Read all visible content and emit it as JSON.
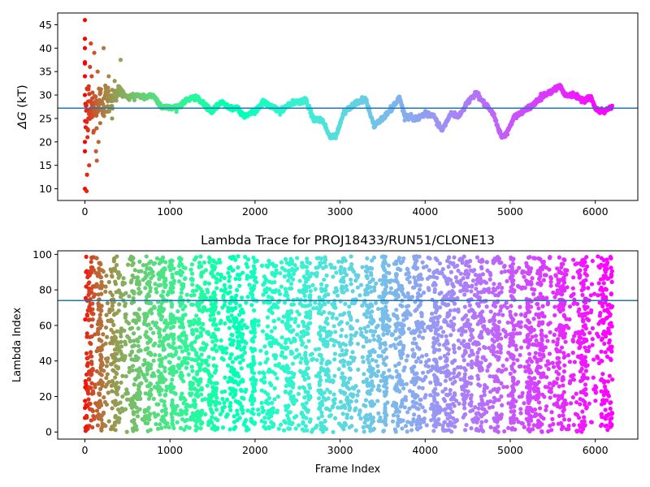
{
  "chart_data": [
    {
      "type": "scatter",
      "title": "",
      "xlabel": "",
      "ylabel": "ΔG (kT)",
      "ylabel_parts": {
        "symbol": "ΔG",
        "unit": " (kT)"
      },
      "xlim": [
        -320,
        6500
      ],
      "ylim": [
        7.5,
        47.5
      ],
      "xticks": [
        0,
        1000,
        2000,
        3000,
        4000,
        5000,
        6000
      ],
      "yticks": [
        10,
        15,
        20,
        25,
        30,
        35,
        40,
        45
      ],
      "hline": {
        "y": 27.2,
        "color": "#1f77b4"
      },
      "colormap": "rainbow (red at start → violet at end)",
      "series": [
        {
          "frame_range": [
            0,
            6200
          ],
          "trace_keypoints": [
            [
              0,
              27
            ],
            [
              100,
              27
            ],
            [
              200,
              28.5
            ],
            [
              300,
              29
            ],
            [
              400,
              31
            ],
            [
              500,
              29.5
            ],
            [
              600,
              30
            ],
            [
              700,
              29.5
            ],
            [
              800,
              30
            ],
            [
              900,
              27.5
            ],
            [
              1000,
              27.3
            ],
            [
              1100,
              27.5
            ],
            [
              1200,
              29
            ],
            [
              1300,
              29.5
            ],
            [
              1400,
              28
            ],
            [
              1500,
              26.5
            ],
            [
              1600,
              28.5
            ],
            [
              1700,
              27.5
            ],
            [
              1800,
              27
            ],
            [
              1870,
              25.5
            ],
            [
              2000,
              26.5
            ],
            [
              2100,
              28.5
            ],
            [
              2200,
              27.5
            ],
            [
              2300,
              26.5
            ],
            [
              2400,
              28
            ],
            [
              2600,
              29
            ],
            [
              2680,
              25
            ],
            [
              2800,
              24.5
            ],
            [
              2880,
              21
            ],
            [
              2950,
              21.2
            ],
            [
              3050,
              26.5
            ],
            [
              3200,
              28.5
            ],
            [
              3300,
              29
            ],
            [
              3400,
              23.5
            ],
            [
              3500,
              25
            ],
            [
              3600,
              27
            ],
            [
              3700,
              29.5
            ],
            [
              3760,
              25.5
            ],
            [
              3900,
              25
            ],
            [
              4000,
              26
            ],
            [
              4100,
              25.5
            ],
            [
              4200,
              22.5
            ],
            [
              4300,
              26
            ],
            [
              4400,
              25.5
            ],
            [
              4500,
              28.5
            ],
            [
              4600,
              30.5
            ],
            [
              4700,
              28
            ],
            [
              4800,
              26
            ],
            [
              4900,
              21
            ],
            [
              4950,
              21.5
            ],
            [
              5050,
              25.5
            ],
            [
              5200,
              27
            ],
            [
              5300,
              28.5
            ],
            [
              5400,
              30
            ],
            [
              5500,
              31
            ],
            [
              5580,
              32
            ],
            [
              5650,
              30
            ],
            [
              5750,
              30
            ],
            [
              5850,
              29
            ],
            [
              5950,
              29.5
            ],
            [
              6000,
              27
            ],
            [
              6100,
              26.5
            ],
            [
              6200,
              27.5
            ]
          ],
          "early_spread": [
            [
              0,
              10
            ],
            [
              0,
              18
            ],
            [
              0,
              20
            ],
            [
              0,
              30
            ],
            [
              0,
              34
            ],
            [
              0,
              37
            ],
            [
              0,
              40
            ],
            [
              0,
              42
            ],
            [
              0,
              46
            ],
            [
              20,
              9.5
            ],
            [
              25,
              13
            ],
            [
              30,
              21
            ],
            [
              40,
              25
            ],
            [
              50,
              15
            ],
            [
              60,
              36
            ],
            [
              70,
              41
            ],
            [
              80,
              34
            ],
            [
              100,
              22
            ],
            [
              110,
              39
            ],
            [
              130,
              18
            ],
            [
              140,
              16
            ],
            [
              150,
              35
            ],
            [
              160,
              20
            ],
            [
              180,
              24
            ],
            [
              220,
              40
            ],
            [
              240,
              32
            ],
            [
              280,
              34
            ],
            [
              320,
              25
            ],
            [
              350,
              33
            ],
            [
              420,
              37.5
            ]
          ]
        }
      ]
    },
    {
      "type": "scatter",
      "title": "Lambda Trace for PROJ18433/RUN51/CLONE13",
      "xlabel": "Frame Index",
      "ylabel": "Lambda Index",
      "xlim": [
        -320,
        6500
      ],
      "ylim": [
        -4,
        102
      ],
      "xticks": [
        0,
        1000,
        2000,
        3000,
        4000,
        5000,
        6000
      ],
      "yticks": [
        0,
        20,
        40,
        60,
        80,
        100
      ],
      "hline": {
        "y": 74,
        "color": "#1f77b4"
      },
      "colormap": "rainbow (red at start → violet at end)",
      "series": [
        {
          "frame_range": [
            0,
            6200
          ],
          "lambda_range": [
            0,
            99
          ],
          "dense_columns": [
            [
              0,
              100
            ],
            [
              150,
              200
            ],
            [
              300,
              400
            ],
            [
              550,
              650
            ],
            [
              700,
              780
            ],
            [
              850,
              950
            ],
            [
              1000,
              1050
            ],
            [
              1100,
              1200
            ],
            [
              1250,
              1380
            ],
            [
              1450,
              1550
            ],
            [
              1700,
              1850
            ],
            [
              1950,
              2000
            ],
            [
              2100,
              2250
            ],
            [
              2350,
              2450
            ],
            [
              2550,
              2650
            ],
            [
              2750,
              2850
            ],
            [
              3000,
              3150
            ],
            [
              3300,
              3400
            ],
            [
              3500,
              3550
            ],
            [
              3650,
              3750
            ],
            [
              3850,
              3950
            ],
            [
              4100,
              4150
            ],
            [
              4250,
              4350
            ],
            [
              4450,
              4550
            ],
            [
              4600,
              4700
            ],
            [
              4800,
              4900
            ],
            [
              5000,
              5050
            ],
            [
              5200,
              5250
            ],
            [
              5300,
              5400
            ],
            [
              5550,
              5650
            ],
            [
              5800,
              5900
            ],
            [
              6050,
              6200
            ]
          ]
        }
      ]
    }
  ]
}
